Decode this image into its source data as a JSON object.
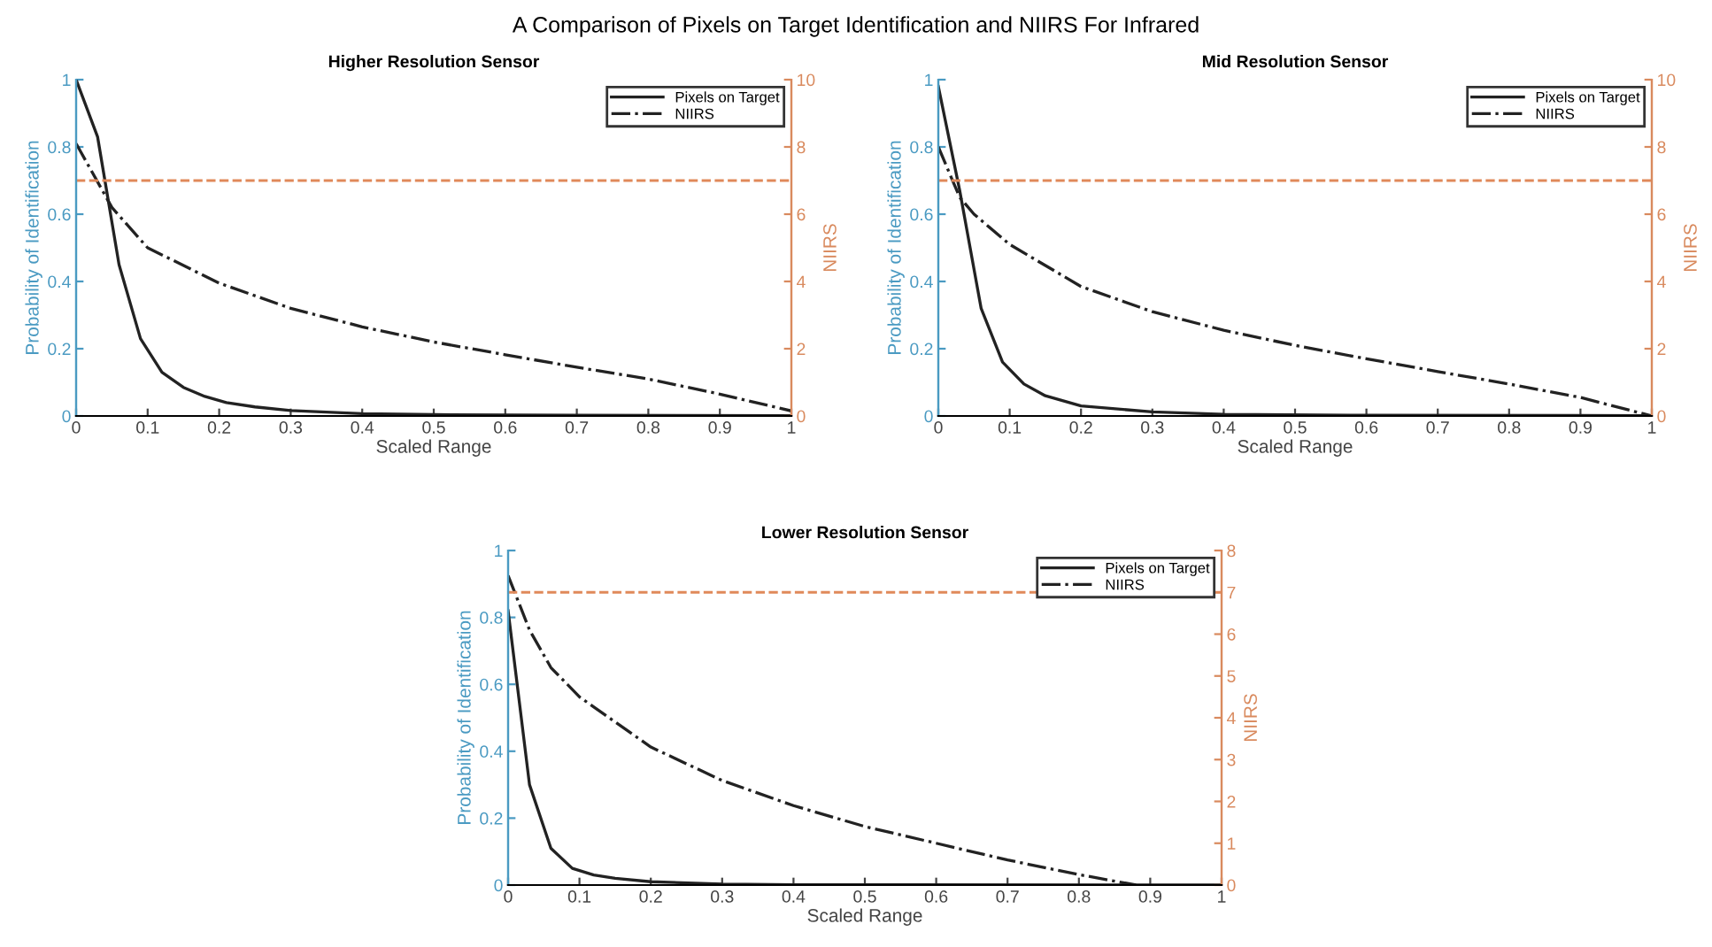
{
  "chart_data": [
    {
      "type": "line",
      "title": "Higher Resolution Sensor",
      "xlabel": "Scaled Range",
      "ylabel": "Probability of Identification",
      "y2label": "NIIRS",
      "xlim": [
        0,
        1
      ],
      "xticks": [
        0,
        0.1,
        0.2,
        0.3,
        0.4,
        0.5,
        0.6,
        0.7,
        0.8,
        0.9,
        1
      ],
      "ylim": [
        0,
        1
      ],
      "yticks": [
        0,
        0.2,
        0.4,
        0.6,
        0.8,
        1
      ],
      "y2lim": [
        0,
        10
      ],
      "y2ticks": [
        0,
        2,
        4,
        6,
        8,
        10
      ],
      "legend": "top right",
      "grid": false,
      "annotations": [
        "A Comparison of Pixels on Target Identification and NIIRS For Infrared"
      ],
      "series": [
        {
          "name": "Pixels on Target",
          "color": "#222222",
          "line_style": "solid",
          "x": [
            0,
            0.03,
            0.06,
            0.09,
            0.12,
            0.15,
            0.18,
            0.21,
            0.25,
            0.3,
            0.4,
            0.5,
            0.7,
            1
          ],
          "values": [
            1.0,
            0.83,
            0.45,
            0.23,
            0.13,
            0.085,
            0.058,
            0.04,
            0.027,
            0.016,
            0.007,
            0.004,
            0.002,
            0.001
          ]
        },
        {
          "name": "NIIRS",
          "color": "#222222",
          "line_style": "dashdot",
          "axis": "y2",
          "x": [
            0,
            0.05,
            0.1,
            0.2,
            0.3,
            0.4,
            0.5,
            0.6,
            0.7,
            0.8,
            0.9,
            1
          ],
          "values": [
            8.1,
            6.2,
            5.0,
            3.95,
            3.2,
            2.65,
            2.2,
            1.82,
            1.45,
            1.1,
            0.65,
            0.15
          ]
        }
      ],
      "ref_lines": [
        {
          "axis": "y2",
          "value": 7,
          "color": "#e0895a",
          "line_style": "dashed"
        }
      ]
    },
    {
      "type": "line",
      "title": "Mid Resolution Sensor",
      "xlabel": "Scaled Range",
      "ylabel": "Probability of Identification",
      "y2label": "NIIRS",
      "xlim": [
        0,
        1
      ],
      "xticks": [
        0,
        0.1,
        0.2,
        0.3,
        0.4,
        0.5,
        0.6,
        0.7,
        0.8,
        0.9,
        1
      ],
      "ylim": [
        0,
        1
      ],
      "yticks": [
        0,
        0.2,
        0.4,
        0.6,
        0.8,
        1
      ],
      "y2lim": [
        0,
        10
      ],
      "y2ticks": [
        0,
        2,
        4,
        6,
        8,
        10
      ],
      "legend": "top right",
      "grid": false,
      "series": [
        {
          "name": "Pixels on Target",
          "color": "#222222",
          "line_style": "solid",
          "x": [
            0,
            0.03,
            0.06,
            0.09,
            0.12,
            0.15,
            0.2,
            0.3,
            0.4,
            0.6,
            1
          ],
          "values": [
            0.98,
            0.67,
            0.32,
            0.16,
            0.095,
            0.06,
            0.03,
            0.012,
            0.005,
            0.002,
            0.001
          ]
        },
        {
          "name": "NIIRS",
          "color": "#222222",
          "line_style": "dashdot",
          "axis": "y2",
          "x": [
            0,
            0.03,
            0.05,
            0.1,
            0.2,
            0.3,
            0.4,
            0.5,
            0.6,
            0.7,
            0.8,
            0.9,
            1
          ],
          "values": [
            8.0,
            6.5,
            6.0,
            5.1,
            3.85,
            3.1,
            2.55,
            2.1,
            1.7,
            1.32,
            0.95,
            0.55,
            0.0
          ]
        }
      ],
      "ref_lines": [
        {
          "axis": "y2",
          "value": 7,
          "color": "#e0895a",
          "line_style": "dashed"
        }
      ]
    },
    {
      "type": "line",
      "title": "Lower Resolution Sensor",
      "xlabel": "Scaled Range",
      "ylabel": "Probability of Identification",
      "y2label": "NIIRS",
      "xlim": [
        0,
        1
      ],
      "xticks": [
        0,
        0.1,
        0.2,
        0.3,
        0.4,
        0.5,
        0.6,
        0.7,
        0.8,
        0.9,
        1
      ],
      "ylim": [
        0,
        1
      ],
      "yticks": [
        0,
        0.2,
        0.4,
        0.6,
        0.8,
        1
      ],
      "y2lim": [
        0,
        8
      ],
      "y2ticks": [
        0,
        1,
        2,
        3,
        4,
        5,
        6,
        7,
        8
      ],
      "legend": "top right",
      "grid": false,
      "series": [
        {
          "name": "Pixels on Target",
          "color": "#222222",
          "line_style": "solid",
          "x": [
            0,
            0.03,
            0.06,
            0.09,
            0.12,
            0.15,
            0.2,
            0.3,
            0.4,
            1
          ],
          "values": [
            0.82,
            0.3,
            0.11,
            0.05,
            0.03,
            0.02,
            0.01,
            0.003,
            0.001,
            0
          ]
        },
        {
          "name": "NIIRS",
          "color": "#222222",
          "line_style": "dashdot",
          "axis": "y2",
          "x": [
            0,
            0.03,
            0.06,
            0.1,
            0.2,
            0.3,
            0.4,
            0.5,
            0.6,
            0.7,
            0.8,
            0.88
          ],
          "values": [
            7.4,
            6.1,
            5.2,
            4.5,
            3.3,
            2.5,
            1.9,
            1.4,
            1.0,
            0.6,
            0.25,
            0
          ]
        }
      ],
      "ref_lines": [
        {
          "axis": "y2",
          "value": 7,
          "color": "#e0895a",
          "line_style": "dashed"
        }
      ]
    }
  ]
}
